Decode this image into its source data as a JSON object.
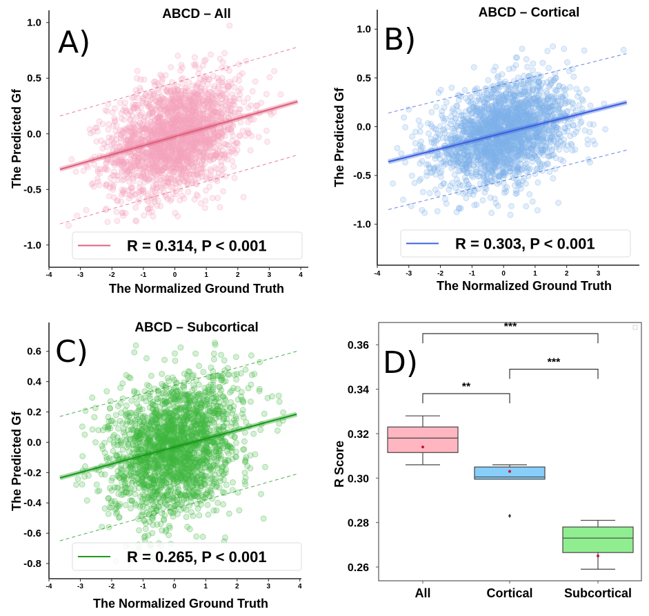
{
  "chart_data": [
    {
      "type": "scatter",
      "panel_label": "A)",
      "title": "ABCD – All",
      "xlabel": "The Normalized Ground Truth",
      "ylabel": "The Predicted Gf",
      "xlim": [
        -4,
        4.24
      ],
      "ylim": [
        -1.2,
        1.11
      ],
      "xticks": [
        "-4",
        "-3",
        "-2",
        "-1",
        "0",
        "1",
        "2",
        "3",
        "4"
      ],
      "yticks": [
        "1.0",
        "0.5",
        "0.0",
        "-0.5",
        "-1.0"
      ],
      "fit_line": {
        "x": [
          -3.65,
          3.9
        ],
        "y": [
          -0.32,
          0.29
        ]
      },
      "prediction_upper": {
        "x": [
          -3.65,
          3.9
        ],
        "y": [
          0.16,
          0.78
        ]
      },
      "prediction_lower": {
        "x": [
          -3.65,
          3.9
        ],
        "y": [
          -0.81,
          -0.19
        ]
      },
      "legend": "R = 0.314,   P < 0.001",
      "legend_position": "bottom",
      "point_color": "#f4a3bd",
      "line_color": "#e0607e",
      "grid": false
    },
    {
      "type": "scatter",
      "panel_label": "B)",
      "title": "ABCD – Cortical",
      "xlabel": "The Normalized Ground Truth",
      "ylabel": "The Predicted Gf",
      "xlim": [
        -4,
        4.3
      ],
      "ylim": [
        -1.42,
        1.2
      ],
      "xticks": [
        "-4",
        "-3",
        "-2",
        "-1",
        "0",
        "1",
        "2",
        "3"
      ],
      "yticks": [
        "1.0",
        "0.5",
        "0.0",
        "-0.5",
        "-1.0"
      ],
      "fit_line": {
        "x": [
          -3.65,
          3.9
        ],
        "y": [
          -0.36,
          0.25
        ]
      },
      "prediction_upper": {
        "x": [
          -3.65,
          3.9
        ],
        "y": [
          0.14,
          0.75
        ]
      },
      "prediction_lower": {
        "x": [
          -3.65,
          3.9
        ],
        "y": [
          -0.85,
          -0.24
        ]
      },
      "legend": "R = 0.303,   P < 0.001",
      "legend_position": "bottom",
      "point_color": "#7eb2ea",
      "line_color": "#3b63de",
      "grid": false
    },
    {
      "type": "scatter",
      "panel_label": "C)",
      "title": "ABCD – Subcortical",
      "xlabel": "The Normalized Ground Truth",
      "ylabel": "The Predicted Gf",
      "xlim": [
        -4,
        4.05
      ],
      "ylim": [
        -0.9,
        0.79
      ],
      "xticks": [
        "-4",
        "-3",
        "-2",
        "-1",
        "0",
        "1",
        "2",
        "3",
        "4"
      ],
      "yticks": [
        "0.6",
        "0.4",
        "0.2",
        "0.0",
        "-0.2",
        "-0.4",
        "-0.6",
        "-0.8"
      ],
      "fit_line": {
        "x": [
          -3.65,
          3.9
        ],
        "y": [
          -0.235,
          0.185
        ]
      },
      "prediction_upper": {
        "x": [
          -3.65,
          3.9
        ],
        "y": [
          0.17,
          0.6
        ]
      },
      "prediction_lower": {
        "x": [
          -3.65,
          3.9
        ],
        "y": [
          -0.65,
          -0.21
        ]
      },
      "legend": "R = 0.265,   P < 0.001",
      "legend_position": "bottom",
      "point_color": "#3fb83f",
      "line_color": "#1a9a1a",
      "grid": false
    },
    {
      "type": "box",
      "panel_label": "D)",
      "ylabel": "R Score",
      "ylim": [
        0.2538,
        0.37
      ],
      "yticks": [
        "0.36",
        "0.34",
        "0.32",
        "0.30",
        "0.28",
        "0.26"
      ],
      "categories": [
        "All",
        "Cortical",
        "Subcortical"
      ],
      "boxes": [
        {
          "whisker_low": 0.306,
          "q1": 0.3115,
          "median": 0.318,
          "q3": 0.323,
          "whisker_high": 0.328,
          "mean": 0.314,
          "outliers": [],
          "color": "#ffb6c1"
        },
        {
          "whisker_low": 0.2995,
          "q1": 0.2995,
          "median": 0.3005,
          "q3": 0.305,
          "whisker_high": 0.306,
          "mean": 0.303,
          "outliers": [
            0.283
          ],
          "color": "#87cefa"
        },
        {
          "whisker_low": 0.259,
          "q1": 0.2665,
          "median": 0.273,
          "q3": 0.278,
          "whisker_high": 0.281,
          "mean": 0.265,
          "outliers": [],
          "color": "#90ee90"
        }
      ],
      "significance": [
        {
          "from": "All",
          "to": "Cortical",
          "level": 0.338,
          "label": "**"
        },
        {
          "from": "Cortical",
          "to": "Subcortical",
          "level": 0.349,
          "label": "***"
        },
        {
          "from": "All",
          "to": "Subcortical",
          "level": 0.365,
          "label": "***"
        }
      ],
      "grid": false
    }
  ]
}
